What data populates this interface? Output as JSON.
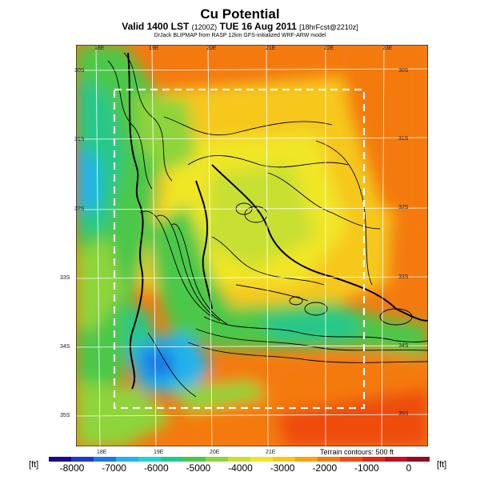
{
  "header": {
    "title": "Cu Potential",
    "subtitle_main": "Valid 1400 LST",
    "subtitle_small1": "(1200Z)",
    "subtitle_main2": "TUE 16 Aug 2011",
    "subtitle_small2": "[18hrFcst@2210z]",
    "model_line": "DrJack BLIPMAP from RASP 12km GFS-initialized WRF-ARW model"
  },
  "map": {
    "lon_labels": [
      "18E",
      "19E",
      "20E",
      "21E",
      "22E",
      "23E"
    ],
    "lat_labels": [
      "30S",
      "31S",
      "32S",
      "33S",
      "34S",
      "35S"
    ],
    "terrain_note": "Terrain contours: 500 ft"
  },
  "colorbar": {
    "unit": "[ft]",
    "labels": [
      "-8000",
      "-7000",
      "-6000",
      "-5000",
      "-4000",
      "-3000",
      "-2000",
      "-1000",
      "0"
    ],
    "colors": [
      "#1a0a8c",
      "#1f3ac8",
      "#1e78e6",
      "#22b4ea",
      "#20d6c8",
      "#26c88a",
      "#4cc84a",
      "#8ed43a",
      "#c8e030",
      "#f0e628",
      "#f6c81e",
      "#f8a214",
      "#f47a10",
      "#ee4c10",
      "#e02818",
      "#c01020",
      "#900c1e"
    ]
  }
}
